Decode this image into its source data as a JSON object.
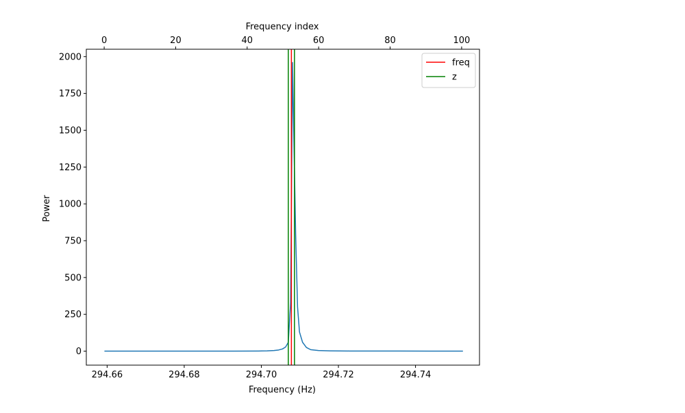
{
  "chart_data": {
    "type": "line",
    "title": "",
    "xlabel": "Frequency (Hz)",
    "ylabel": "Power",
    "top_xlabel": "Frequency index",
    "xlim": [
      294.6546,
      294.7566
    ],
    "ylim": [
      -95,
      2050
    ],
    "top_xlim": [
      -5,
      105
    ],
    "x_ticks": [
      294.66,
      294.68,
      294.7,
      294.72,
      294.74
    ],
    "x_tick_labels": [
      "294.66",
      "294.68",
      "294.70",
      "294.72",
      "294.74"
    ],
    "y_ticks": [
      0,
      250,
      500,
      750,
      1000,
      1250,
      1500,
      1750,
      2000
    ],
    "y_tick_labels": [
      "0",
      "250",
      "500",
      "750",
      "1000",
      "1250",
      "1500",
      "1750",
      "2000"
    ],
    "top_ticks": [
      0,
      20,
      40,
      60,
      80,
      100
    ],
    "top_tick_labels": [
      "0",
      "20",
      "40",
      "60",
      "80",
      "100"
    ],
    "grid": false,
    "legend_position": "top-right",
    "series": [
      {
        "color": "#1f77b4",
        "x": [
          294.6593,
          294.6658,
          294.6723,
          294.6798,
          294.6863,
          294.6928,
          294.6993,
          294.7015,
          294.7033,
          294.7045,
          294.7055,
          294.7063,
          294.707,
          294.7076,
          294.7081,
          294.7084,
          294.7089,
          294.7094,
          294.7099,
          294.7107,
          294.7117,
          294.7128,
          294.7148,
          294.7178,
          294.7228,
          294.7278,
          294.7358,
          294.7438,
          294.7523
        ],
        "y": [
          0,
          0,
          0,
          0,
          0,
          0,
          1,
          2,
          4,
          8,
          15,
          28,
          60,
          330,
          1960,
          1500,
          800,
          300,
          130,
          60,
          25,
          10,
          4,
          2,
          1,
          1,
          1,
          0,
          0
        ]
      }
    ],
    "vlines": [
      {
        "name": "freq",
        "color": "#ff0000",
        "x": 294.7078
      },
      {
        "name": "z",
        "color": "#008000",
        "x": 294.707
      },
      {
        "color": "#008000",
        "x": 294.7086
      }
    ],
    "legend": [
      {
        "label": "freq",
        "color": "#ff0000"
      },
      {
        "label": "z",
        "color": "#008000"
      }
    ]
  }
}
